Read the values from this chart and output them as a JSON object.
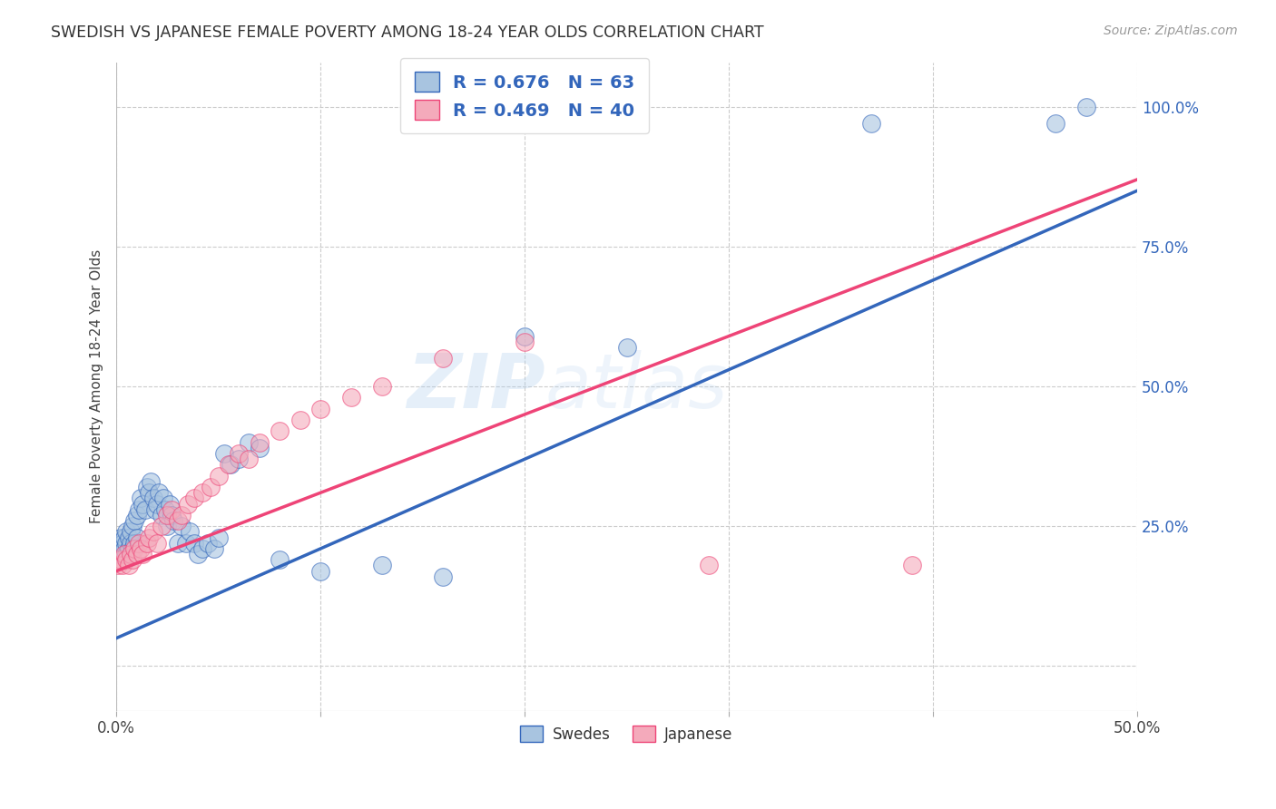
{
  "title": "SWEDISH VS JAPANESE FEMALE POVERTY AMONG 18-24 YEAR OLDS CORRELATION CHART",
  "source": "Source: ZipAtlas.com",
  "ylabel": "Female Poverty Among 18-24 Year Olds",
  "ytick_labels": [
    "",
    "25.0%",
    "50.0%",
    "75.0%",
    "100.0%"
  ],
  "ytick_positions": [
    0.0,
    0.25,
    0.5,
    0.75,
    1.0
  ],
  "xtick_labels": [
    "0.0%",
    "",
    "",
    "",
    "",
    "50.0%"
  ],
  "xtick_positions": [
    0.0,
    0.1,
    0.2,
    0.3,
    0.4,
    0.5
  ],
  "xlim": [
    0.0,
    0.5
  ],
  "ylim": [
    -0.08,
    1.08
  ],
  "legend_blue_label": "R = 0.676   N = 63",
  "legend_pink_label": "R = 0.469   N = 40",
  "legend_swedes": "Swedes",
  "legend_japanese": "Japanese",
  "blue_color": "#A8C4E0",
  "pink_color": "#F4AABB",
  "blue_line_color": "#3366BB",
  "pink_line_color": "#EE4477",
  "watermark_zip": "ZIP",
  "watermark_atlas": "atlas",
  "background_color": "#FFFFFF",
  "grid_color": "#CCCCCC",
  "swedes_x": [
    0.001,
    0.001,
    0.002,
    0.002,
    0.003,
    0.003,
    0.004,
    0.004,
    0.005,
    0.005,
    0.005,
    0.006,
    0.006,
    0.007,
    0.007,
    0.008,
    0.008,
    0.009,
    0.009,
    0.01,
    0.01,
    0.011,
    0.012,
    0.013,
    0.014,
    0.015,
    0.016,
    0.017,
    0.018,
    0.019,
    0.02,
    0.021,
    0.022,
    0.023,
    0.024,
    0.025,
    0.026,
    0.027,
    0.028,
    0.03,
    0.032,
    0.034,
    0.036,
    0.038,
    0.04,
    0.042,
    0.045,
    0.048,
    0.05,
    0.053,
    0.056,
    0.06,
    0.065,
    0.07,
    0.08,
    0.1,
    0.13,
    0.16,
    0.2,
    0.25,
    0.37,
    0.46,
    0.475
  ],
  "swedes_y": [
    0.2,
    0.22,
    0.21,
    0.23,
    0.2,
    0.22,
    0.21,
    0.23,
    0.2,
    0.22,
    0.24,
    0.21,
    0.23,
    0.22,
    0.24,
    0.21,
    0.25,
    0.22,
    0.26,
    0.23,
    0.27,
    0.28,
    0.3,
    0.29,
    0.28,
    0.32,
    0.31,
    0.33,
    0.3,
    0.28,
    0.29,
    0.31,
    0.27,
    0.3,
    0.28,
    0.25,
    0.29,
    0.27,
    0.26,
    0.22,
    0.25,
    0.22,
    0.24,
    0.22,
    0.2,
    0.21,
    0.22,
    0.21,
    0.23,
    0.38,
    0.36,
    0.37,
    0.4,
    0.39,
    0.19,
    0.17,
    0.18,
    0.16,
    0.59,
    0.57,
    0.97,
    0.97,
    1.0
  ],
  "japanese_x": [
    0.001,
    0.002,
    0.003,
    0.004,
    0.005,
    0.006,
    0.007,
    0.008,
    0.009,
    0.01,
    0.011,
    0.012,
    0.013,
    0.015,
    0.016,
    0.018,
    0.02,
    0.022,
    0.025,
    0.027,
    0.03,
    0.032,
    0.035,
    0.038,
    0.042,
    0.046,
    0.05,
    0.055,
    0.06,
    0.065,
    0.07,
    0.08,
    0.09,
    0.1,
    0.115,
    0.13,
    0.16,
    0.2,
    0.29,
    0.39
  ],
  "japanese_y": [
    0.18,
    0.19,
    0.18,
    0.2,
    0.19,
    0.18,
    0.2,
    0.19,
    0.21,
    0.2,
    0.22,
    0.21,
    0.2,
    0.22,
    0.23,
    0.24,
    0.22,
    0.25,
    0.27,
    0.28,
    0.26,
    0.27,
    0.29,
    0.3,
    0.31,
    0.32,
    0.34,
    0.36,
    0.38,
    0.37,
    0.4,
    0.42,
    0.44,
    0.46,
    0.48,
    0.5,
    0.55,
    0.58,
    0.18,
    0.18
  ],
  "blue_intercept": 0.05,
  "blue_slope": 1.6,
  "pink_intercept": 0.17,
  "pink_slope": 1.4
}
